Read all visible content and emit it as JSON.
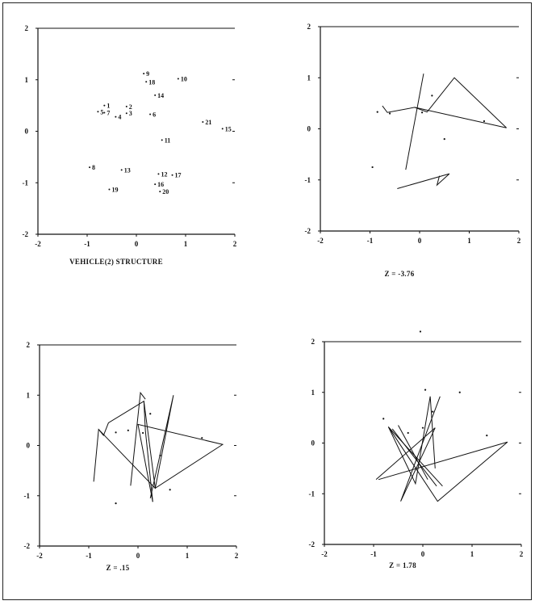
{
  "chart_data": [
    {
      "type": "scatter",
      "title": "VEHICLE(2) STRUCTURE",
      "xlim": [
        -2,
        2
      ],
      "ylim": [
        -2,
        2
      ],
      "xticks": [
        "-2",
        "-1",
        "0",
        "1",
        "2"
      ],
      "yticks": [
        "-2",
        "-1",
        "0",
        "1",
        "2"
      ],
      "grid": false,
      "points": [
        {
          "label": "1",
          "x": -0.65,
          "y": 0.5
        },
        {
          "label": "2",
          "x": -0.2,
          "y": 0.48
        },
        {
          "label": "3",
          "x": -0.2,
          "y": 0.35
        },
        {
          "label": "4",
          "x": -0.42,
          "y": 0.28
        },
        {
          "label": "5",
          "x": -0.78,
          "y": 0.38
        },
        {
          "label": "6",
          "x": 0.28,
          "y": 0.33
        },
        {
          "label": "7",
          "x": -0.65,
          "y": 0.36
        },
        {
          "label": "8",
          "x": -0.95,
          "y": -0.7
        },
        {
          "label": "9",
          "x": 0.15,
          "y": 1.12
        },
        {
          "label": "10",
          "x": 0.85,
          "y": 1.02
        },
        {
          "label": "11",
          "x": 0.52,
          "y": -0.17
        },
        {
          "label": "12",
          "x": 0.45,
          "y": -0.83
        },
        {
          "label": "13",
          "x": -0.3,
          "y": -0.75
        },
        {
          "label": "14",
          "x": 0.38,
          "y": 0.7
        },
        {
          "label": "15",
          "x": 1.75,
          "y": 0.05
        },
        {
          "label": "16",
          "x": 0.38,
          "y": -1.03
        },
        {
          "label": "17",
          "x": 0.73,
          "y": -0.85
        },
        {
          "label": "18",
          "x": 0.2,
          "y": 0.96
        },
        {
          "label": "19",
          "x": -0.55,
          "y": -1.13
        },
        {
          "label": "20",
          "x": 0.48,
          "y": -1.17
        },
        {
          "label": "21",
          "x": 1.35,
          "y": 0.18
        }
      ]
    },
    {
      "type": "line",
      "title": "Z = -3.76",
      "xlim": [
        -2,
        2
      ],
      "ylim": [
        -2,
        2
      ],
      "xticks": [
        "-2",
        "-1",
        "0",
        "1",
        "2"
      ],
      "yticks": [
        "-2",
        "-1",
        "0",
        "1",
        "2"
      ],
      "grid": false,
      "paths": [
        [
          [
            -0.75,
            0.45
          ],
          [
            -0.65,
            0.32
          ],
          [
            -0.1,
            0.42
          ],
          [
            1.75,
            0.02
          ]
        ],
        [
          [
            -0.1,
            0.42
          ],
          [
            0.15,
            0.33
          ],
          [
            0.7,
            1.0
          ],
          [
            1.75,
            0.02
          ]
        ],
        [
          [
            -0.45,
            -1.17
          ],
          [
            0.6,
            -0.88
          ],
          [
            0.35,
            -1.1
          ],
          [
            0.4,
            -0.92
          ]
        ],
        [
          [
            0.08,
            1.08
          ],
          [
            -0.28,
            -0.8
          ]
        ]
      ],
      "dots": [
        [
          -0.95,
          -0.75
        ],
        [
          0.5,
          -0.2
        ],
        [
          0.25,
          0.65
        ],
        [
          1.3,
          0.15
        ],
        [
          -0.85,
          0.33
        ],
        [
          0.05,
          0.32
        ],
        [
          -0.6,
          0.3
        ]
      ]
    },
    {
      "type": "line",
      "title": "Z = .15",
      "xlim": [
        -2,
        2
      ],
      "ylim": [
        -2,
        2
      ],
      "xticks": [
        "-2",
        "-1",
        "0",
        "1",
        "2"
      ],
      "yticks": [
        "-2",
        "-1",
        "0",
        "1",
        "2"
      ],
      "grid": false,
      "paths": [
        [
          [
            -0.9,
            -0.72
          ],
          [
            -0.8,
            0.32
          ],
          [
            -0.7,
            0.2
          ],
          [
            -0.6,
            0.45
          ],
          [
            0.12,
            0.88
          ],
          [
            0.35,
            -0.85
          ],
          [
            1.72,
            0.02
          ],
          [
            0.0,
            0.42
          ],
          [
            0.3,
            -1.12
          ]
        ],
        [
          [
            -0.8,
            0.32
          ],
          [
            0.35,
            -0.85
          ],
          [
            0.72,
            1.0
          ],
          [
            0.25,
            -1.05
          ]
        ],
        [
          [
            -0.15,
            -0.8
          ],
          [
            0.05,
            1.05
          ],
          [
            0.15,
            0.92
          ]
        ],
        [
          [
            0.12,
            0.88
          ],
          [
            0.15,
            0.3
          ],
          [
            0.3,
            -1.12
          ]
        ]
      ],
      "dots": [
        [
          -0.45,
          -1.15
        ],
        [
          0.45,
          -0.2
        ],
        [
          0.25,
          0.63
        ],
        [
          1.3,
          0.15
        ],
        [
          -0.2,
          0.3
        ],
        [
          -0.45,
          0.26
        ],
        [
          0.1,
          0.25
        ],
        [
          0.65,
          -0.88
        ]
      ]
    },
    {
      "type": "line",
      "title": "Z = 1.78",
      "xlim": [
        -2,
        2
      ],
      "ylim": [
        -2,
        2
      ],
      "xticks": [
        "-2",
        "-1",
        "0",
        "1",
        "2"
      ],
      "yticks": [
        "-2",
        "-1",
        "0",
        "1",
        "2"
      ],
      "grid": false,
      "paths": [
        [
          [
            -0.95,
            -0.72
          ],
          [
            0.25,
            0.3
          ],
          [
            -0.45,
            -1.15
          ],
          [
            0.35,
            0.92
          ]
        ],
        [
          [
            -0.9,
            -0.72
          ],
          [
            1.72,
            0.02
          ],
          [
            0.3,
            -1.15
          ],
          [
            -0.7,
            0.32
          ],
          [
            0.4,
            -0.85
          ]
        ],
        [
          [
            -0.7,
            0.32
          ],
          [
            -0.15,
            -0.8
          ],
          [
            0.15,
            0.92
          ],
          [
            0.25,
            -0.5
          ]
        ],
        [
          [
            -0.5,
            0.35
          ],
          [
            0.1,
            -0.72
          ]
        ],
        [
          [
            -0.62,
            0.28
          ],
          [
            0.28,
            -0.85
          ]
        ]
      ],
      "dots": [
        [
          0.05,
          1.05
        ],
        [
          0.75,
          1.0
        ],
        [
          1.3,
          0.15
        ],
        [
          -0.8,
          0.48
        ],
        [
          0.2,
          0.62
        ],
        [
          -0.3,
          0.2
        ],
        [
          0.0,
          0.3
        ],
        [
          -0.05,
          2.2
        ]
      ]
    }
  ]
}
